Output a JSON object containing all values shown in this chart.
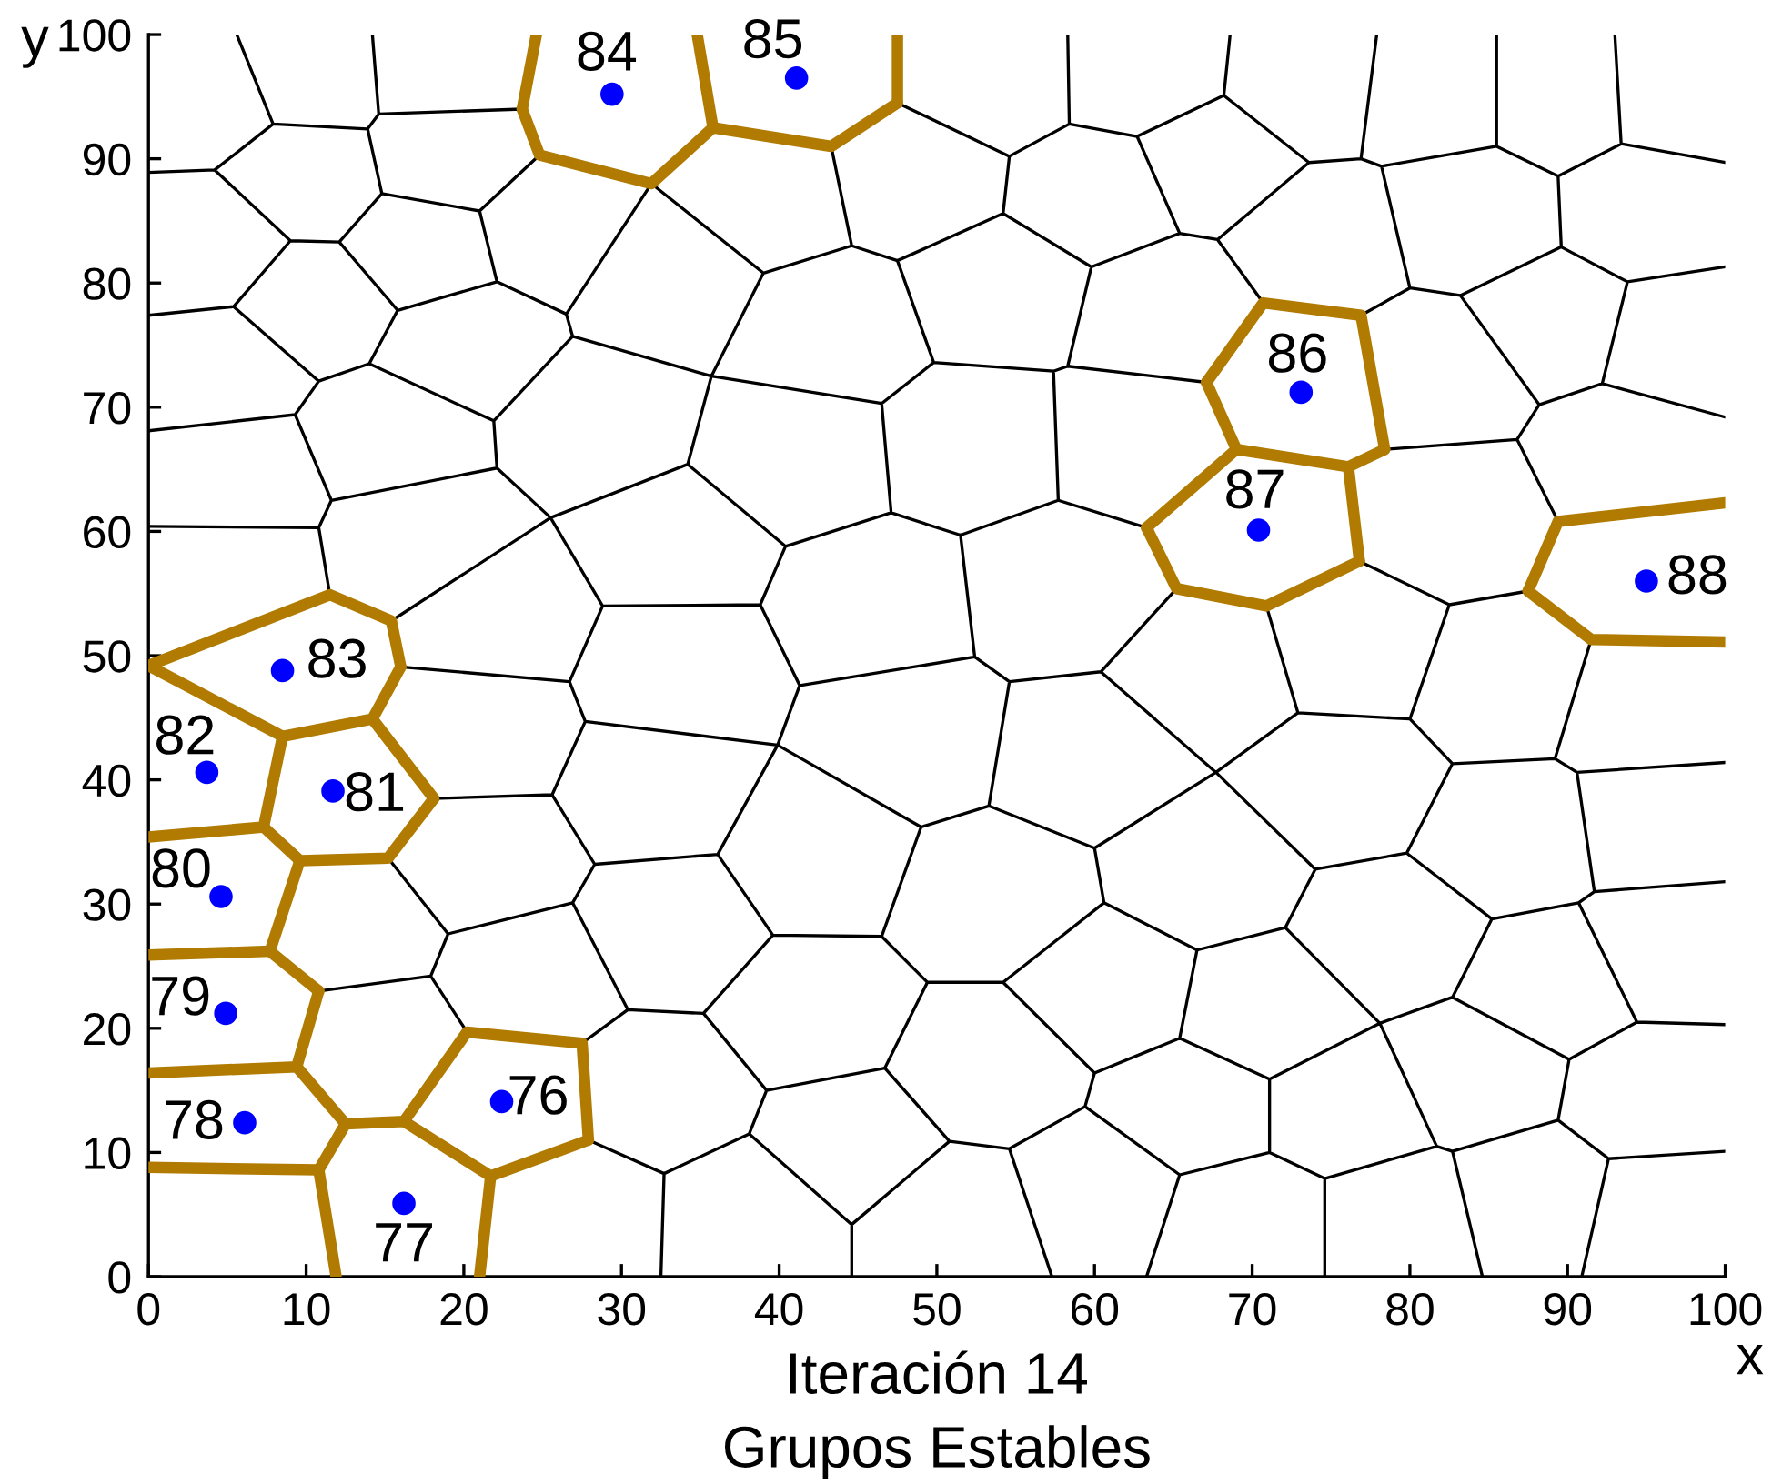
{
  "chart_data": {
    "type": "line",
    "title": "Iteración 14",
    "subtitle": "Grupos Estables",
    "xlabel": "x",
    "ylabel": "y",
    "xlim": [
      0,
      100
    ],
    "ylim": [
      0,
      100
    ],
    "xticks": [
      0,
      10,
      20,
      30,
      40,
      50,
      60,
      70,
      80,
      90,
      100
    ],
    "yticks": [
      0,
      10,
      20,
      30,
      40,
      50,
      60,
      70,
      80,
      90,
      100
    ],
    "series": [
      {
        "color": "#000000",
        "x": [
          5.6,
          7.9,
          4.2,
          0,
          null,
          7.9,
          13.9,
          14.6,
          14.2,
          null,
          14.6,
          23.7,
          null,
          13.9,
          14.8,
          21.0,
          24.8,
          null,
          4.2,
          9.0,
          5.4,
          0,
          null,
          9.0,
          12.1,
          14.8,
          null,
          12.1,
          15.8,
          22.1,
          21.0,
          null,
          22.1,
          26.5,
          26.9,
          21.9,
          14.0,
          15.8,
          null,
          26.5,
          31.9,
          39.0,
          44.6,
          43.3,
          null,
          5.4,
          10.8,
          14.0,
          null,
          10.8,
          9.3,
          0,
          null,
          9.3,
          11.6,
          22.1,
          21.9,
          null,
          11.6,
          10.8,
          0,
          null,
          10.8,
          11.5,
          null,
          22.1,
          25.5,
          34.2,
          35.7,
          26.9,
          null,
          25.5,
          28.8,
          38.8,
          40.4,
          34.2,
          null,
          25.5,
          15.4,
          null,
          28.8,
          26.7,
          16.0,
          null,
          47.5,
          54.6,
          58.4,
          58.3,
          null,
          54.6,
          54.2,
          47.5,
          44.6,
          null,
          58.4,
          62.7,
          68.2,
          68.6,
          null,
          62.7,
          65.4,
          59.8,
          54.2,
          null,
          47.5,
          49.8,
          46.5,
          35.7,
          39.0,
          null,
          59.8,
          58.3,
          57.4,
          49.8,
          null,
          58.3,
          67.1,
          null,
          57.4,
          57.7,
          51.5,
          47.1,
          46.5,
          null,
          47.1,
          40.4,
          null,
          57.7,
          63.3,
          null,
          51.5,
          52.4,
          41.3,
          38.8,
          null,
          65.4,
          67.8,
          73.6,
          68.2,
          null,
          67.8,
          70.7,
          null,
          73.6,
          76.9,
          77.9,
          null,
          76.9,
          78.2,
          85.5,
          85.5,
          null,
          85.5,
          89.4,
          93.4,
          93.0,
          null,
          93.4,
          100,
          null,
          89.4,
          89.6,
          93.8,
          100,
          null,
          78.2,
          80.0,
          83.2,
          89.6,
          null,
          80.0,
          76.9,
          null,
          93.8,
          92.2,
          100,
          null,
          83.2,
          88.2,
          92.2,
          null,
          88.2,
          86.8,
          78.4,
          null,
          86.8,
          89.4,
          null,
          76.8,
          82.5,
          87.5,
          null,
          82.5,
          80.0,
          72.9,
          70.9,
          null,
          91.5,
          89.2,
          90.6,
          100,
          null,
          26.7,
          27.7,
          39.9,
          41.3,
          null,
          27.7,
          25.6,
          18.1,
          null,
          25.6,
          28.3,
          36.1,
          39.9,
          49.0,
          53.3,
          54.6,
          52.4,
          null,
          28.3,
          26.9,
          19.0,
          15.2,
          null,
          26.9,
          30.4,
          35.2,
          39.6,
          36.1,
          null,
          19.0,
          17.9,
          10.8,
          null,
          17.9,
          20.2,
          null,
          30.4,
          27.5,
          null,
          27.9,
          32.7,
          32.5,
          null,
          32.7,
          38.1,
          39.2,
          35.2,
          null,
          54.6,
          60.4,
          67.7,
          60.0,
          53.3,
          null,
          65.2,
          60.4,
          null,
          67.7,
          72.9,
          null,
          67.7,
          74.0,
          79.8,
          82.7,
          80.0,
          null,
          82.7,
          89.2,
          null,
          60.0,
          60.6,
          54.2,
          49.4,
          46.5,
          39.6,
          null,
          49.0,
          46.5,
          null,
          49.4,
          46.7,
          39.2,
          null,
          46.7,
          50.8,
          44.6,
          38.1,
          null,
          44.6,
          44.6,
          null,
          50.8,
          54.6,
          57.3,
          null,
          54.6,
          59.4,
          60.0,
          54.2,
          null,
          60.0,
          65.4,
          66.5,
          60.6,
          null,
          59.4,
          65.4,
          63.3,
          null,
          65.4,
          71.1,
          71.1,
          65.4,
          null,
          66.5,
          72.1,
          74.0,
          null,
          72.1,
          78.1,
          71.1,
          null,
          90.6,
          91.7,
          100,
          null,
          91.7,
          90.7,
          85.2,
          79.8,
          null,
          90.7,
          94.4,
          100,
          null,
          94.4,
          90.1,
          82.7,
          85.2,
          null,
          82.7,
          78.1,
          81.7,
          74.6,
          71.1,
          null,
          74.6,
          74.6,
          null,
          81.7,
          82.7,
          84.6,
          null,
          82.7,
          89.4,
          90.1,
          null,
          89.4,
          92.6,
          100,
          null,
          92.6,
          90.9
        ],
        "values": [
          100,
          92.8,
          89.1,
          88.9,
          null,
          92.8,
          92.4,
          93.6,
          100,
          null,
          93.6,
          94.0,
          null,
          92.4,
          87.2,
          85.8,
          90.3,
          null,
          89.1,
          83.4,
          78.1,
          77.4,
          null,
          83.4,
          83.3,
          87.2,
          null,
          83.3,
          77.8,
          80.1,
          85.8,
          null,
          80.1,
          77.5,
          75.7,
          68.9,
          73.5,
          77.8,
          null,
          77.5,
          88.0,
          80.8,
          83.0,
          91.0,
          null,
          78.1,
          72.1,
          73.5,
          null,
          72.1,
          69.4,
          68.1,
          null,
          69.4,
          62.5,
          65.1,
          68.9,
          null,
          62.5,
          60.3,
          60.4,
          null,
          60.3,
          54.9,
          null,
          65.1,
          61.1,
          65.4,
          72.5,
          75.7,
          null,
          61.1,
          54.0,
          54.1,
          58.8,
          65.4,
          null,
          61.1,
          52.8,
          null,
          54.0,
          47.9,
          49.1,
          null,
          94.5,
          90.2,
          92.8,
          100,
          null,
          90.2,
          85.6,
          81.8,
          83.0,
          null,
          92.8,
          91.8,
          95.1,
          100,
          null,
          91.8,
          84.0,
          81.3,
          85.6,
          null,
          81.8,
          73.6,
          70.3,
          72.5,
          80.8,
          null,
          81.3,
          73.3,
          72.9,
          73.6,
          null,
          73.3,
          72.0,
          null,
          72.9,
          62.5,
          59.7,
          61.5,
          70.3,
          null,
          61.5,
          58.8,
          null,
          62.5,
          60.3,
          null,
          59.7,
          49.9,
          47.6,
          54.1,
          null,
          84.0,
          83.5,
          89.7,
          95.1,
          null,
          83.5,
          78.4,
          null,
          89.7,
          90.0,
          100,
          null,
          90.0,
          89.4,
          91.0,
          100,
          null,
          91.0,
          88.6,
          91.2,
          100,
          null,
          91.2,
          89.7,
          null,
          88.6,
          82.9,
          80.1,
          81.3,
          null,
          89.4,
          79.6,
          79.0,
          82.9,
          null,
          79.6,
          77.4,
          null,
          80.1,
          71.9,
          69.2,
          null,
          79.0,
          70.2,
          71.9,
          null,
          70.2,
          67.4,
          66.6,
          null,
          67.4,
          60.8,
          null,
          57.6,
          54.1,
          55.2,
          null,
          54.1,
          44.9,
          45.4,
          54.0,
          null,
          51.3,
          41.7,
          40.6,
          41.4,
          null,
          47.9,
          44.7,
          42.8,
          47.6,
          null,
          44.7,
          38.8,
          38.5,
          null,
          38.8,
          33.2,
          34.0,
          42.8,
          36.2,
          37.9,
          47.9,
          49.9,
          null,
          33.2,
          30.1,
          27.6,
          33.7,
          null,
          30.1,
          21.5,
          21.2,
          27.5,
          34.0,
          null,
          27.6,
          24.2,
          23.0,
          null,
          24.2,
          19.7,
          null,
          21.5,
          18.8,
          null,
          11.0,
          8.3,
          0,
          null,
          8.3,
          11.5,
          15.0,
          21.2,
          null,
          47.9,
          48.7,
          40.6,
          34.5,
          37.9,
          null,
          55.4,
          48.7,
          null,
          40.6,
          45.4,
          null,
          40.6,
          32.8,
          34.1,
          41.3,
          44.9,
          null,
          41.3,
          41.7,
          null,
          34.5,
          30.1,
          23.7,
          23.7,
          27.4,
          27.5,
          null,
          36.2,
          27.4,
          null,
          23.7,
          16.8,
          15.0,
          null,
          16.8,
          10.9,
          4.2,
          11.5,
          null,
          4.2,
          0,
          null,
          10.9,
          10.3,
          0,
          null,
          10.3,
          13.7,
          16.4,
          23.7,
          null,
          16.4,
          19.2,
          26.3,
          30.1,
          null,
          13.7,
          8.2,
          0,
          null,
          8.2,
          10.0,
          15.9,
          19.2,
          null,
          26.3,
          28.1,
          32.8,
          null,
          28.1,
          20.4,
          15.9,
          null,
          40.6,
          31.0,
          31.8,
          null,
          31.0,
          30.1,
          28.8,
          34.1,
          null,
          30.1,
          20.5,
          20.3,
          null,
          20.5,
          17.5,
          22.5,
          28.8,
          null,
          22.5,
          20.4,
          10.5,
          7.9,
          10.0,
          null,
          7.9,
          0,
          null,
          10.5,
          10.1,
          0,
          null,
          10.1,
          12.6,
          17.5,
          null,
          12.6,
          9.5,
          10.1,
          null,
          9.5,
          0
        ]
      },
      {
        "color": "#b07b00",
        "x": [
          23.7,
          24.6
        ],
        "values": [
          94.0,
          100
        ]
      },
      {
        "color": "#b07b00",
        "x": [
          23.7,
          24.8,
          31.9,
          35.8,
          43.3,
          47.5
        ],
        "values": [
          94.0,
          90.3,
          88.0,
          92.5,
          91.0,
          94.5
        ]
      },
      {
        "color": "#b07b00",
        "x": [
          34.8,
          35.8
        ],
        "values": [
          100,
          92.5
        ]
      },
      {
        "color": "#b07b00",
        "x": [
          47.5,
          47.5
        ],
        "values": [
          94.5,
          100
        ]
      },
      {
        "color": "#b07b00",
        "x": [
          67.1,
          70.7,
          76.9,
          78.4
        ],
        "values": [
          72.0,
          78.4,
          77.4,
          66.6
        ]
      },
      {
        "color": "#b07b00",
        "x": [
          63.3,
          69.0,
          76.1,
          78.4
        ],
        "values": [
          60.3,
          66.6,
          65.2,
          66.6
        ]
      },
      {
        "color": "#b07b00",
        "x": [
          67.1,
          69.0
        ],
        "values": [
          72.0,
          66.6
        ]
      },
      {
        "color": "#b07b00",
        "x": [
          63.3,
          65.2,
          70.9,
          76.8
        ],
        "values": [
          60.3,
          55.4,
          54.0,
          57.6
        ]
      },
      {
        "color": "#b07b00",
        "x": [
          76.1,
          76.8
        ],
        "values": [
          65.2,
          57.6
        ]
      },
      {
        "color": "#b07b00",
        "x": [
          87.5,
          89.4,
          100
        ],
        "values": [
          55.2,
          60.8,
          62.3
        ]
      },
      {
        "color": "#b07b00",
        "x": [
          87.5,
          91.5,
          100
        ],
        "values": [
          55.2,
          51.3,
          51.1
        ]
      },
      {
        "color": "#b07b00",
        "x": [
          0,
          11.5,
          15.4,
          16.0
        ],
        "values": [
          49.2,
          54.9,
          52.8,
          49.1
        ]
      },
      {
        "color": "#b07b00",
        "x": [
          0,
          8.5,
          14.2,
          16.0
        ],
        "values": [
          49.2,
          43.5,
          44.9,
          49.1
        ]
      },
      {
        "color": "#b07b00",
        "x": [
          0,
          7.3,
          8.5
        ],
        "values": [
          35.4,
          36.2,
          43.5
        ]
      },
      {
        "color": "#b07b00",
        "x": [
          14.2,
          18.1
        ],
        "values": [
          44.9,
          38.5
        ]
      },
      {
        "color": "#b07b00",
        "x": [
          7.3,
          9.6,
          15.2,
          18.1
        ],
        "values": [
          36.2,
          33.5,
          33.7,
          38.5
        ]
      },
      {
        "color": "#b07b00",
        "x": [
          0,
          7.7,
          9.6
        ],
        "values": [
          25.9,
          26.2,
          33.5
        ]
      },
      {
        "color": "#b07b00",
        "x": [
          7.7,
          10.8
        ],
        "values": [
          26.2,
          23.0
        ]
      },
      {
        "color": "#b07b00",
        "x": [
          0,
          9.4,
          10.8
        ],
        "values": [
          16.4,
          16.9,
          23.0
        ]
      },
      {
        "color": "#b07b00",
        "x": [
          9.4,
          12.5
        ],
        "values": [
          16.9,
          12.3
        ]
      },
      {
        "color": "#b07b00",
        "x": [
          0,
          10.8,
          12.5,
          16.2,
          21.7,
          27.9
        ],
        "values": [
          8.8,
          8.6,
          12.3,
          12.5,
          8.1,
          11.0
        ]
      },
      {
        "color": "#b07b00",
        "x": [
          10.8,
          11.9
        ],
        "values": [
          8.6,
          0
        ]
      },
      {
        "color": "#b07b00",
        "x": [
          21.0,
          21.7
        ],
        "values": [
          0,
          8.1
        ]
      },
      {
        "color": "#b07b00",
        "x": [
          16.2,
          20.2,
          27.5,
          27.9
        ],
        "values": [
          12.5,
          19.7,
          18.8,
          11.0
        ]
      },
      {
        "type": "scatter",
        "color": "#0000ff",
        "marker": "circle",
        "x": [
          22.4,
          16.2,
          6.1,
          4.9,
          4.6,
          11.7,
          3.7,
          8.5,
          29.4,
          41.1,
          73.1,
          70.4,
          95.0
        ],
        "values": [
          14.1,
          5.9,
          12.4,
          21.2,
          30.6,
          39.1,
          40.6,
          48.8,
          95.2,
          96.5,
          71.2,
          60.1,
          56.0
        ]
      }
    ],
    "annotations": [
      "76",
      "77",
      "78",
      "79",
      "80",
      "81",
      "82",
      "83",
      "84",
      "85",
      "86",
      "87",
      "88"
    ]
  }
}
